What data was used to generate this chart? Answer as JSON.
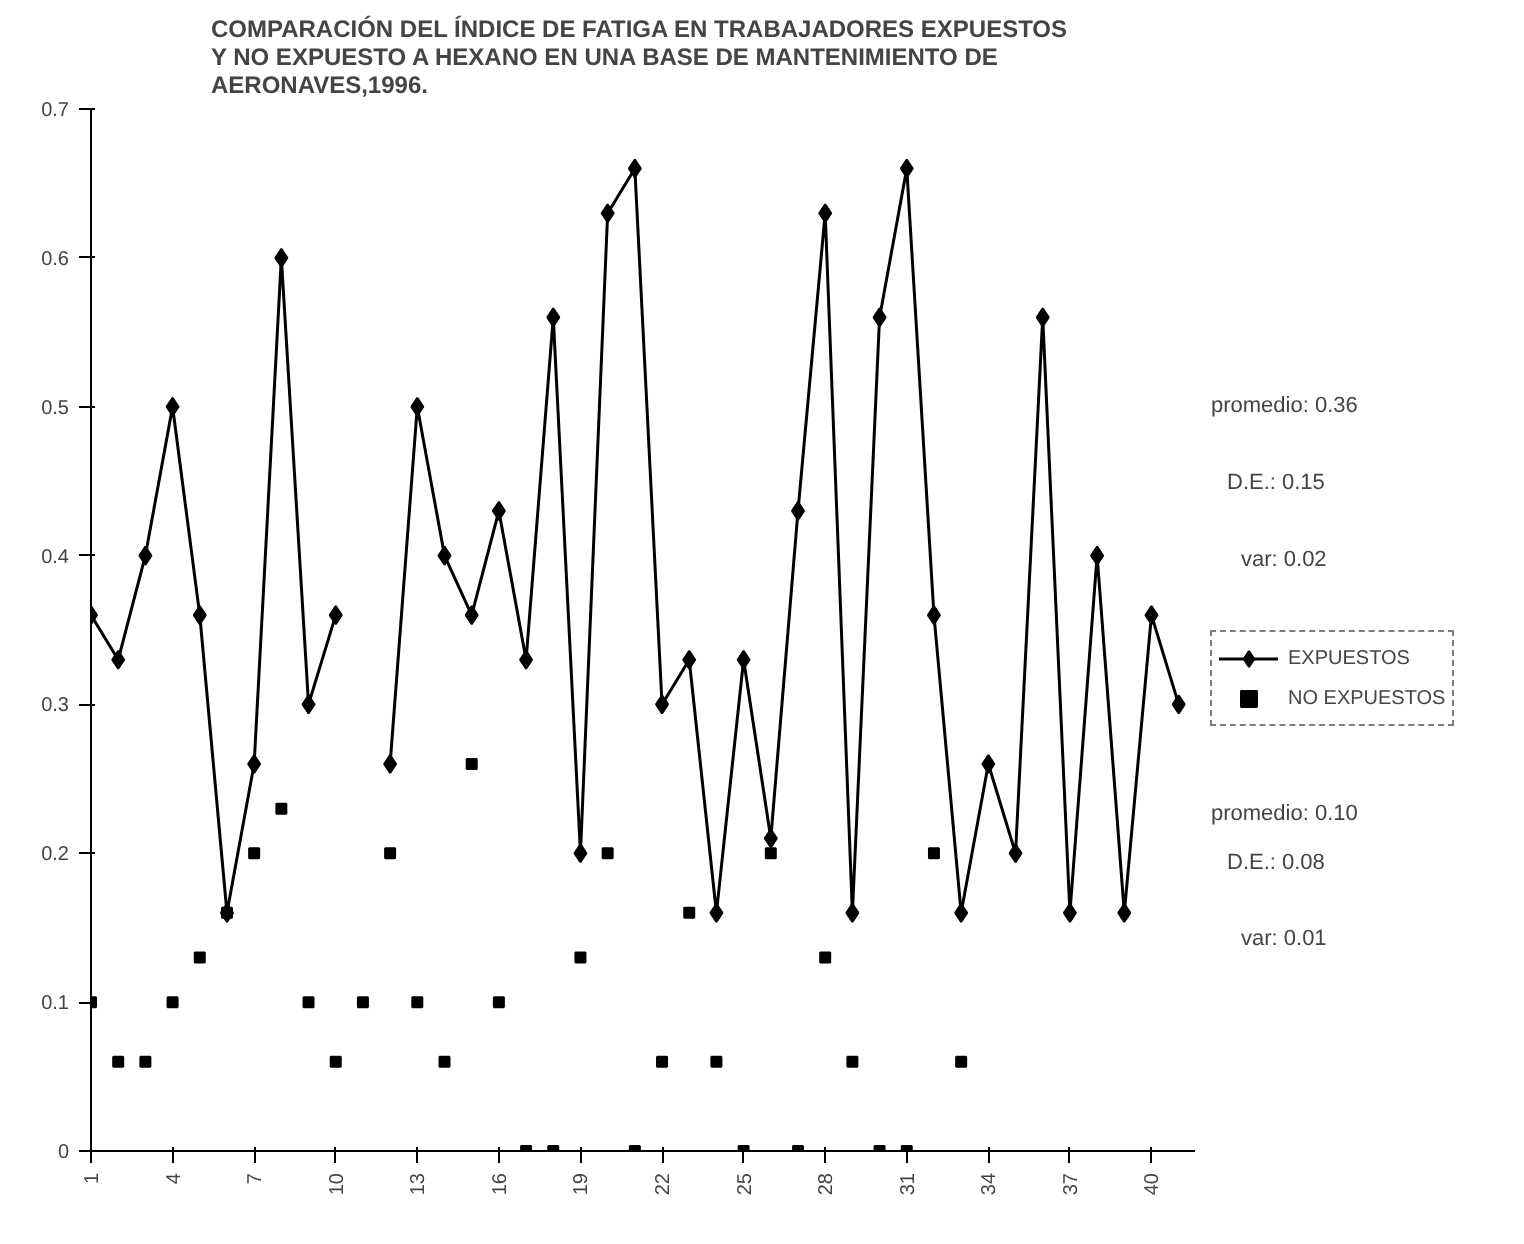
{
  "chart_data": {
    "type": "line",
    "title": "COMPARACIÓN DEL ÍNDICE DE FATIGA  EN TRABAJADORES EXPUESTOS\nY NO EXPUESTO A HEXANO EN UNA BASE DE MANTENIMIENTO DE\nAERONAVES,1996.",
    "x": [
      1,
      2,
      3,
      4,
      5,
      6,
      7,
      8,
      9,
      10,
      11,
      12,
      13,
      14,
      15,
      16,
      17,
      18,
      19,
      20,
      21,
      22,
      23,
      24,
      25,
      26,
      27,
      28,
      29,
      30,
      31,
      32,
      33,
      34,
      35,
      36,
      37,
      38,
      39,
      40,
      41
    ],
    "series": [
      {
        "name": "EXPUESTOS",
        "marker": "diamond",
        "color": "#000000",
        "values": [
          0.36,
          0.33,
          0.4,
          0.5,
          0.36,
          0.16,
          0.26,
          0.6,
          0.3,
          0.36,
          null,
          0.26,
          0.5,
          0.4,
          0.36,
          0.43,
          0.33,
          0.56,
          0.2,
          0.63,
          0.66,
          0.3,
          0.33,
          0.16,
          0.33,
          0.21,
          0.43,
          0.63,
          0.16,
          0.56,
          0.66,
          0.36,
          0.16,
          0.26,
          0.2,
          0.56,
          0.16,
          0.4,
          0.16,
          0.36,
          0.3
        ]
      },
      {
        "name": "NO EXPUESTOS",
        "type": "scatter",
        "marker": "square",
        "color": "#000000",
        "values": [
          0.1,
          0.06,
          0.06,
          0.1,
          0.13,
          0.16,
          0.2,
          0.23,
          0.1,
          0.06,
          0.1,
          0.2,
          0.1,
          0.06,
          0.26,
          0.1,
          0,
          0,
          0.13,
          0.2,
          0,
          0.06,
          0.16,
          0.06,
          0,
          0.2,
          0,
          0.13,
          0.06,
          0,
          0,
          0.2,
          0.06,
          null,
          null,
          null,
          null,
          null,
          null,
          null,
          null
        ]
      }
    ],
    "xlim": [
      1,
      41.6
    ],
    "xticks": [
      1,
      4,
      7,
      10,
      13,
      16,
      19,
      22,
      25,
      28,
      31,
      34,
      37,
      40
    ],
    "ylim": [
      0,
      0.7
    ],
    "yticks": [
      0,
      0.1,
      0.2,
      0.3,
      0.4,
      0.5,
      0.6,
      0.7
    ],
    "grid": false,
    "legend": "right",
    "annotations": [
      "promedio: 0.36",
      "D.E.: 0.15",
      "var: 0.02",
      "promedio: 0.10",
      "D.E.: 0.08",
      "var: 0.01"
    ]
  }
}
